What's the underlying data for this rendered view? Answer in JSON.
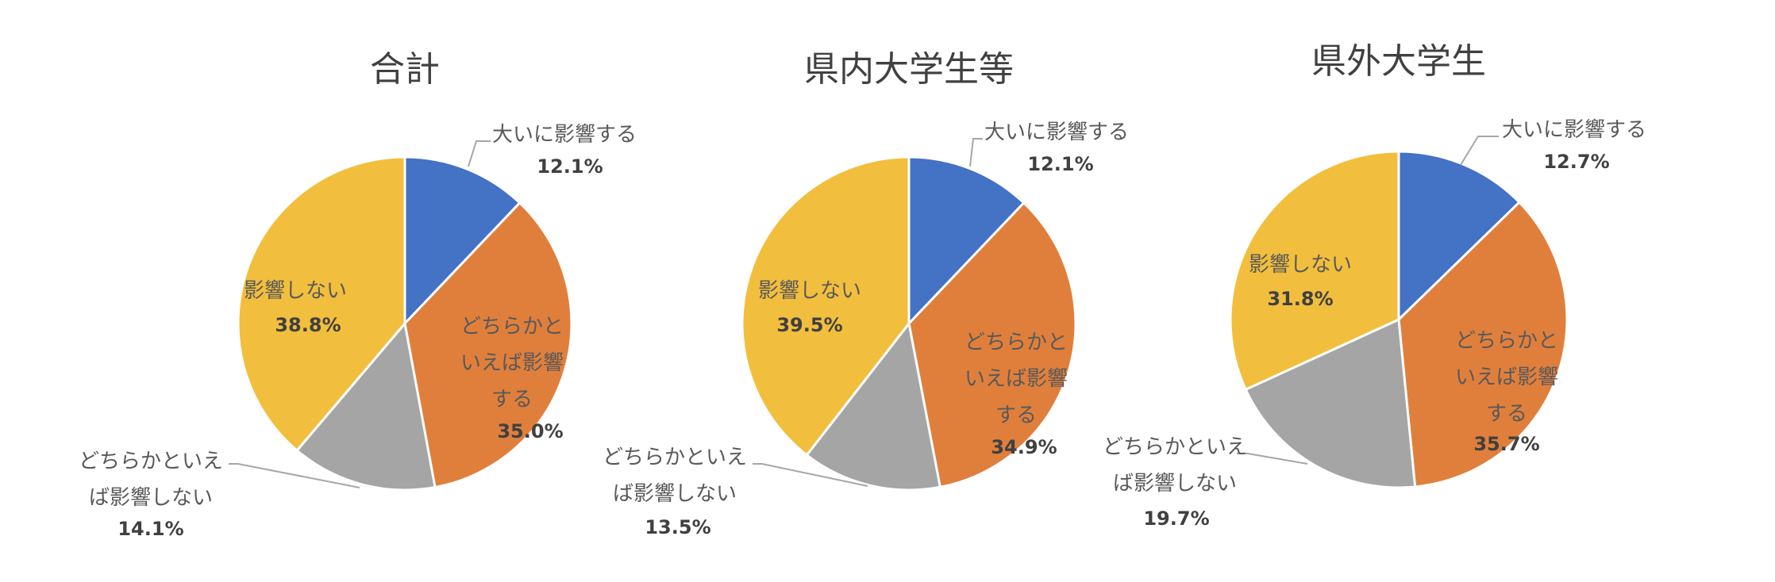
{
  "chart_data": [
    {
      "type": "pie",
      "title": "合計",
      "slices": [
        {
          "label": "大いに影響する",
          "display_label": [
            "大いに影響する"
          ],
          "value": 12.1,
          "value_label": "12.1%"
        },
        {
          "label": "どちらかといえば影響する",
          "display_label": [
            "どちらかと",
            "いえば影響",
            "する"
          ],
          "value": 35.0,
          "value_label": "35.0%"
        },
        {
          "label": "どちらかといえば影響しない",
          "display_label": [
            "どちらかといえ",
            "ば影響しない"
          ],
          "value": 14.1,
          "value_label": "14.1%"
        },
        {
          "label": "影響しない",
          "display_label": [
            "影響しない"
          ],
          "value": 38.8,
          "value_label": "38.8%"
        }
      ]
    },
    {
      "type": "pie",
      "title": "県内大学生等",
      "slices": [
        {
          "label": "大いに影響する",
          "display_label": [
            "大いに影響する"
          ],
          "value": 12.1,
          "value_label": "12.1%"
        },
        {
          "label": "どちらかといえば影響する",
          "display_label": [
            "どちらかと",
            "いえば影響",
            "する"
          ],
          "value": 34.9,
          "value_label": "34.9%"
        },
        {
          "label": "どちらかといえば影響しない",
          "display_label": [
            "どちらかといえ",
            "ば影響しない"
          ],
          "value": 13.5,
          "value_label": "13.5%"
        },
        {
          "label": "影響しない",
          "display_label": [
            "影響しない"
          ],
          "value": 39.5,
          "value_label": "39.5%"
        }
      ]
    },
    {
      "type": "pie",
      "title": "県外大学生",
      "slices": [
        {
          "label": "大いに影響する",
          "display_label": [
            "大いに影響する"
          ],
          "value": 12.7,
          "value_label": "12.7%"
        },
        {
          "label": "どちらかといえば影響する",
          "display_label": [
            "どちらかと",
            "いえば影響",
            "する"
          ],
          "value": 35.7,
          "value_label": "35.7%"
        },
        {
          "label": "どちらかといえば影響しない",
          "display_label": [
            "どちらかといえ",
            "ば影響しない"
          ],
          "value": 19.7,
          "value_label": "19.7%"
        },
        {
          "label": "影響しない",
          "display_label": [
            "影響しない"
          ],
          "value": 31.8,
          "value_label": "31.8%"
        }
      ]
    }
  ],
  "colors": [
    "#4472c4",
    "#e07f3c",
    "#a5a5a5",
    "#f2be3d"
  ],
  "legend": "none"
}
